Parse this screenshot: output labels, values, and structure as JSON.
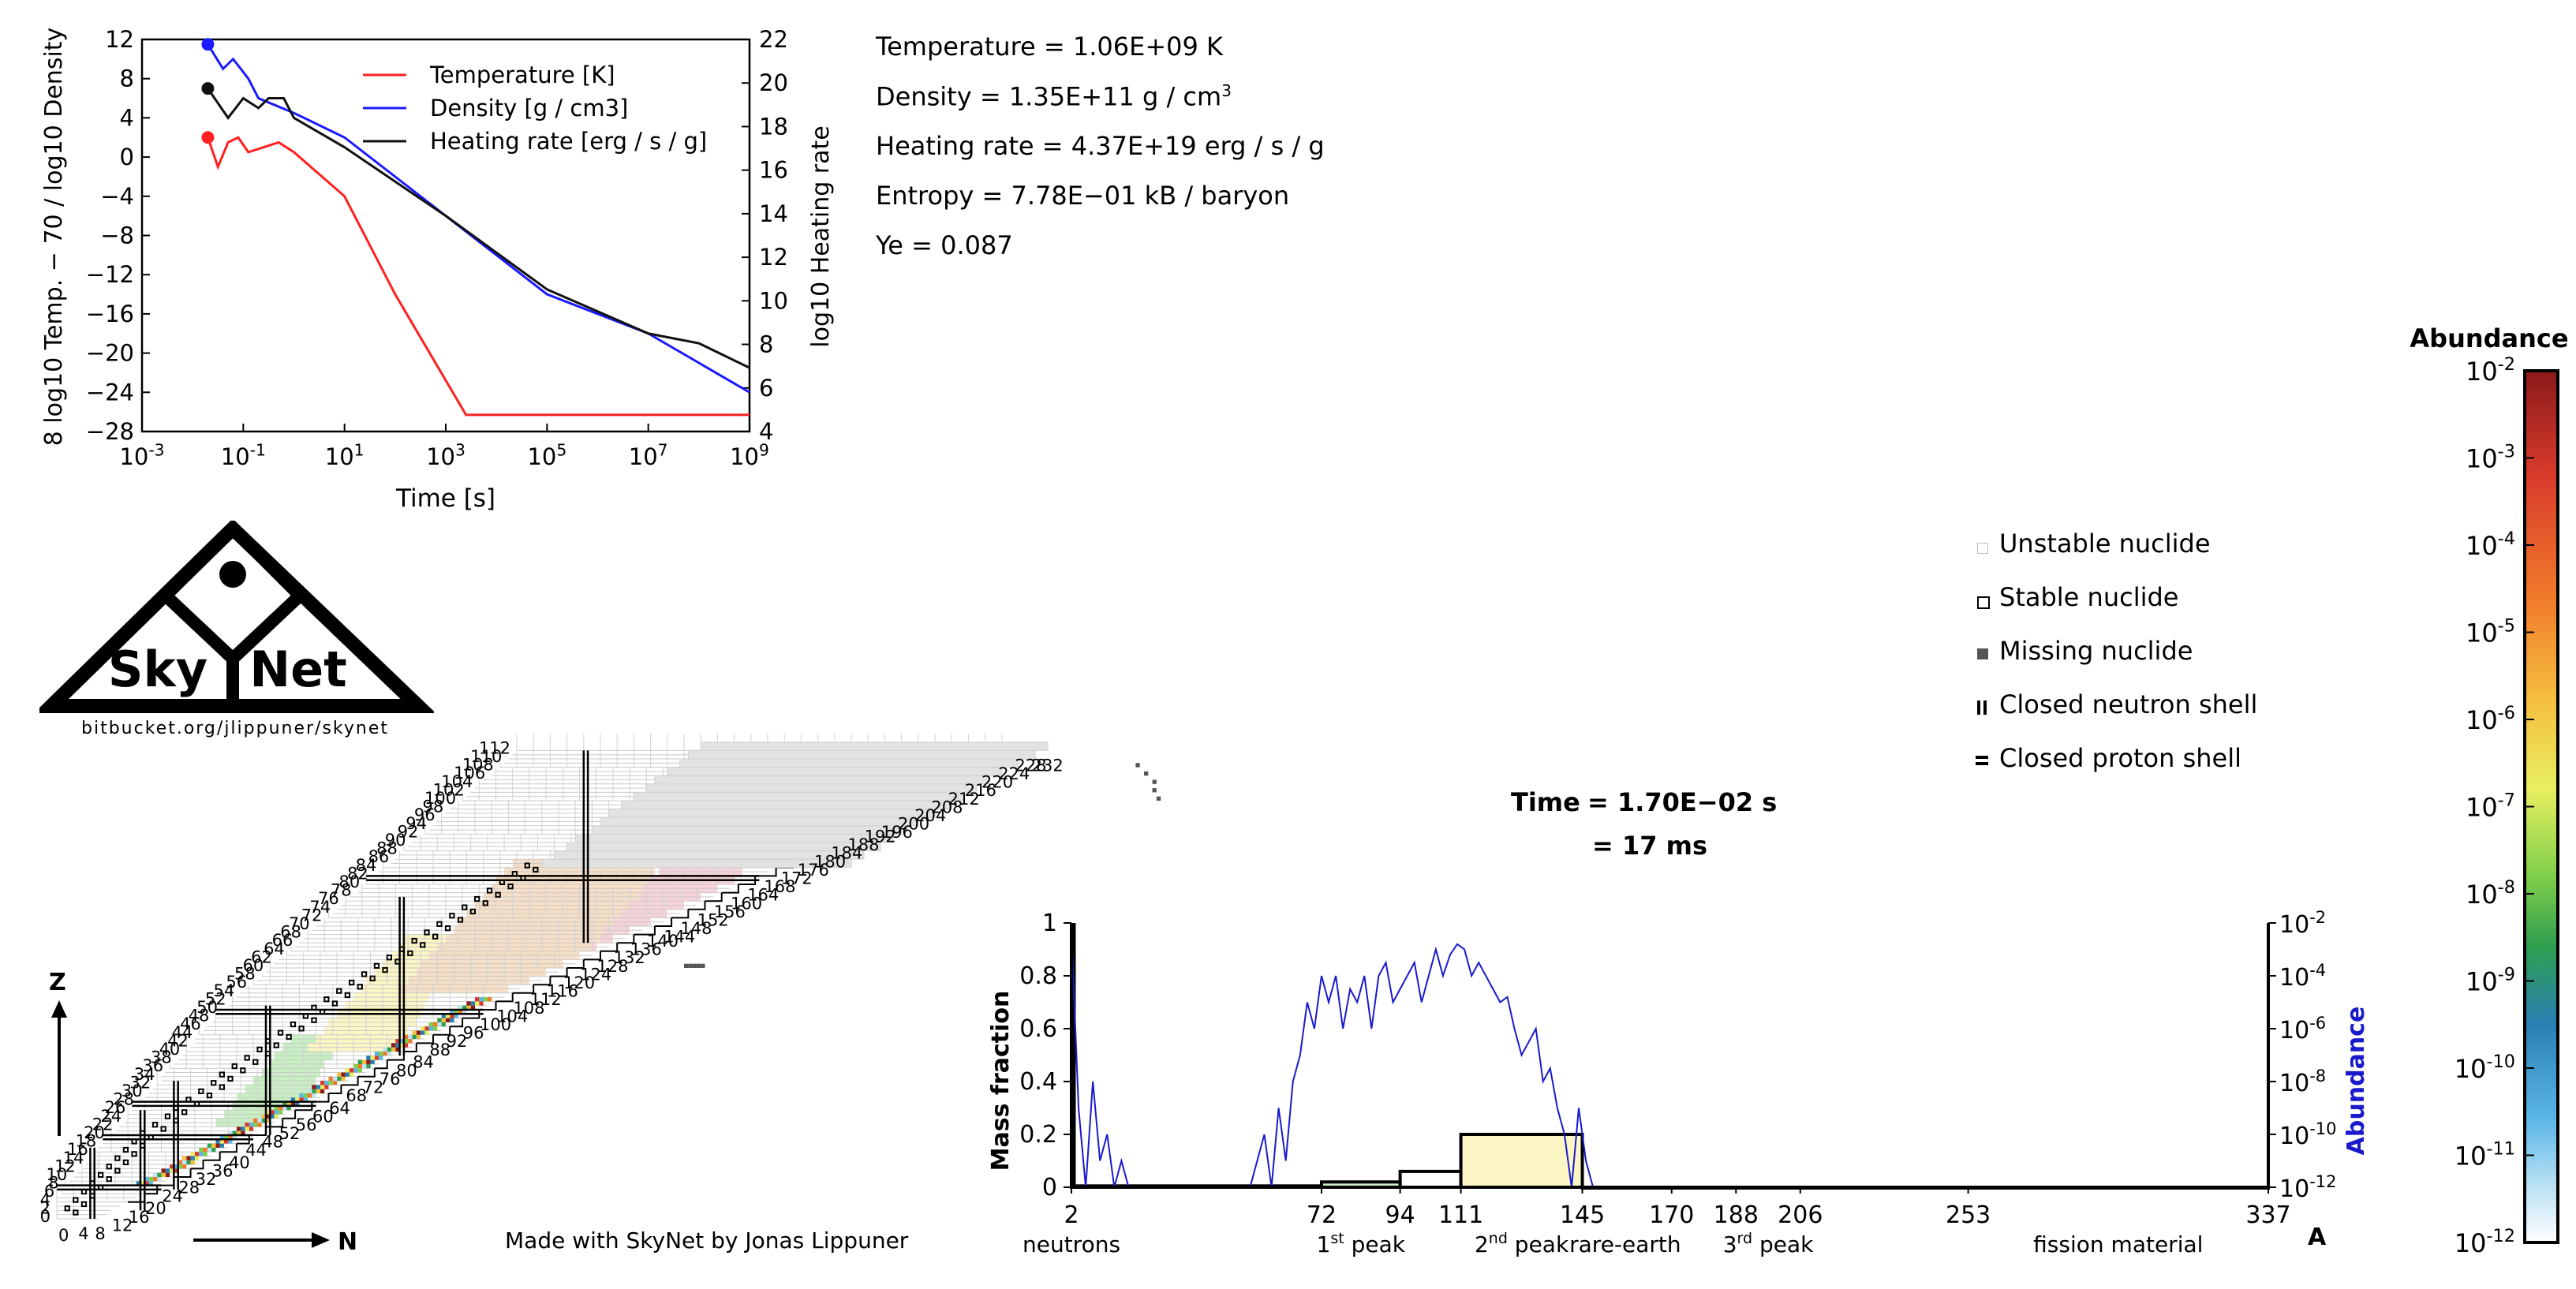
{
  "colors": {
    "temperature": "#ff2020",
    "density": "#1a1aff",
    "heating": "#111111",
    "abundance_axis": "#1a1acc",
    "region_green": "#c8efc2",
    "region_yellow": "#fbf6c4",
    "region_orange": "#f6dfc6",
    "region_pink": "#f6d3d8",
    "region_grey": "#e2e2e2",
    "peak_fill": "#fbf6c4"
  },
  "thermo_chart": {
    "type": "line",
    "xlabel": "Time [s]",
    "ylabel_left": "8 log10 Temp. − 70  /  log10 Density",
    "ylabel_right": "log10 Heating rate",
    "x_ticks": [
      "10-3",
      "10-1",
      "101",
      "103",
      "105",
      "107",
      "109"
    ],
    "y_left_ticks": [
      "12",
      "8",
      "4",
      "0",
      "−4",
      "−8",
      "−12",
      "−16",
      "−20",
      "−24",
      "−28"
    ],
    "y_right_ticks": [
      "22",
      "20",
      "18",
      "16",
      "14",
      "12",
      "10",
      "8",
      "6",
      "4"
    ],
    "legend": [
      "Temperature [K]",
      "Density [g / cm3]",
      "Heating rate [erg / s / g]"
    ],
    "xlim": [
      -3,
      9
    ],
    "ylim_left": [
      -28,
      12
    ],
    "ylim_right": [
      4,
      22
    ],
    "series": [
      {
        "name": "Temperature",
        "color_key": "temperature",
        "x": [
          -1.7,
          -1.5,
          -1.3,
          -1.1,
          -0.9,
          -0.6,
          -0.3,
          0,
          1,
          2,
          3.4,
          9
        ],
        "y": [
          2,
          -1,
          1.5,
          2,
          0.5,
          1,
          1.5,
          0.5,
          -4,
          -14,
          -26.3,
          -26.3
        ]
      },
      {
        "name": "Density",
        "color_key": "density",
        "x": [
          -1.7,
          -1.4,
          -1.2,
          -0.9,
          -0.7,
          0,
          1,
          3,
          5,
          7,
          9
        ],
        "y": [
          11.5,
          9,
          10,
          8,
          6,
          4.5,
          2,
          -6,
          -14,
          -18,
          -24
        ]
      },
      {
        "name": "Heating",
        "color_key": "heating",
        "x": [
          -1.7,
          -1.3,
          -1.0,
          -0.7,
          -0.5,
          -0.2,
          0,
          1,
          3,
          5,
          7,
          8,
          9
        ],
        "y": [
          7,
          4,
          6,
          5,
          6,
          6,
          4,
          1,
          -6,
          -13.5,
          -18,
          -19,
          -21.5
        ]
      }
    ],
    "markers": [
      {
        "series": "Temperature",
        "x": -1.7,
        "y": 2
      },
      {
        "series": "Density",
        "x": -1.7,
        "y": 11.5
      },
      {
        "series": "Heating",
        "x": -1.7,
        "y": 7
      }
    ]
  },
  "state": {
    "temperature": "Temperature = 1.06E+09 K",
    "density": "Density = 1.35E+11 g / cm",
    "density_sup": "3",
    "heating": "Heating rate = 4.37E+19 erg / s / g",
    "entropy": "Entropy = 7.78E−01 kB / baryon",
    "ye": "Ye = 0.087"
  },
  "time": {
    "label": "Time",
    "value": "= 1.70E−02 s",
    "value_ms": "= 17 ms"
  },
  "logo": {
    "sky": "Sky",
    "net": "Net",
    "url": "bitbucket.org/jlippuner/skynet"
  },
  "credit": "Made with SkyNet by Jonas Lippuner",
  "nuclide_chart": {
    "axis_z": "Z",
    "axis_n": "N",
    "z_labels": [
      "0",
      "2",
      "4",
      "6",
      "8",
      "10",
      "12",
      "14",
      "16",
      "18",
      "20",
      "22",
      "24",
      "26",
      "28",
      "30",
      "32",
      "34",
      "36",
      "38",
      "40",
      "42",
      "44",
      "46",
      "48",
      "50",
      "52",
      "54",
      "56",
      "58",
      "60",
      "62",
      "64",
      "66",
      "68",
      "70",
      "72",
      "74",
      "76",
      "78",
      "80",
      "82",
      "84",
      "86",
      "88",
      "90",
      "92",
      "94",
      "96",
      "98",
      "100",
      "102",
      "104",
      "106",
      "108",
      "110",
      "112"
    ],
    "n_labels": [
      "4",
      "8",
      "12",
      "16",
      "20",
      "24",
      "28",
      "32",
      "36",
      "40",
      "44",
      "48",
      "52",
      "56",
      "60",
      "64",
      "68",
      "72",
      "76",
      "80",
      "84",
      "88",
      "92",
      "96",
      "100",
      "104",
      "108",
      "112",
      "116",
      "120",
      "124",
      "128",
      "132",
      "136",
      "140",
      "144",
      "148",
      "152",
      "156",
      "160",
      "164",
      "168",
      "172",
      "176",
      "180",
      "184",
      "188",
      "192",
      "196",
      "200",
      "204",
      "208",
      "212",
      "216",
      "220",
      "224",
      "228",
      "232"
    ],
    "n_label_zero": "0",
    "magic_z": [
      8,
      20,
      28,
      50,
      82
    ],
    "magic_n": [
      8,
      20,
      28,
      50,
      82,
      126
    ]
  },
  "legend": {
    "items": [
      "Unstable nuclide",
      "Stable nuclide",
      "Missing nuclide",
      "Closed neutron shell",
      "Closed proton shell"
    ]
  },
  "colorbar": {
    "title": "Abundance",
    "ticks": [
      "10-2",
      "10-3",
      "10-4",
      "10-5",
      "10-6",
      "10-7",
      "10-8",
      "10-9",
      "10-10",
      "10-11",
      "10-12"
    ]
  },
  "chart_data": {
    "type": "bar",
    "title": "",
    "xlabel": "A",
    "ylabel": "Mass fraction",
    "ylabel_right": "Abundance",
    "ylim": [
      0,
      1
    ],
    "y_ticks": [
      "1",
      "0.8",
      "0.6",
      "0.4",
      "0.2",
      "0"
    ],
    "y_right_ticks": [
      "10-2",
      "10-4",
      "10-6",
      "10-8",
      "10-10",
      "10-12"
    ],
    "x_ticks": [
      "2",
      "72",
      "94",
      "111",
      "145",
      "170",
      "188",
      "206",
      "253",
      "337"
    ],
    "x_tick_values": [
      2,
      72,
      94,
      111,
      145,
      170,
      188,
      206,
      253,
      337
    ],
    "region_labels": [
      "neutrons",
      "1st peak",
      "2nd peak",
      "rare-earth",
      "3rd peak",
      "fission material"
    ],
    "bins": [
      {
        "from": 2,
        "to": 72,
        "value": 0.005
      },
      {
        "from": 72,
        "to": 94,
        "value": 0.02
      },
      {
        "from": 94,
        "to": 111,
        "value": 0.06
      },
      {
        "from": 111,
        "to": 145,
        "value": 0.2
      },
      {
        "from": 145,
        "to": 170,
        "value": 0.0
      },
      {
        "from": 170,
        "to": 188,
        "value": 0.0
      },
      {
        "from": 188,
        "to": 206,
        "value": 0.0
      },
      {
        "from": 206,
        "to": 253,
        "value": 0.0
      },
      {
        "from": 253,
        "to": 337,
        "value": 0.0
      }
    ],
    "neutron_spike": 1.0,
    "abundance_series": {
      "name": "Abundance",
      "x": [
        2,
        4,
        6,
        8,
        10,
        12,
        14,
        16,
        18,
        20,
        22,
        24,
        26,
        28,
        30,
        35,
        40,
        45,
        50,
        52,
        54,
        56,
        58,
        60,
        62,
        64,
        66,
        68,
        70,
        72,
        74,
        76,
        78,
        80,
        82,
        84,
        86,
        88,
        90,
        92,
        94,
        96,
        98,
        100,
        102,
        104,
        106,
        108,
        110,
        112,
        114,
        116,
        118,
        120,
        122,
        124,
        126,
        128,
        130,
        132,
        134,
        136,
        138,
        140,
        142,
        144,
        146,
        148,
        150,
        152,
        154
      ],
      "y": [
        -2.3,
        -9,
        -12,
        -8,
        -11,
        -10,
        -12,
        -11,
        -12,
        -12,
        -12,
        -12,
        -12,
        -12,
        -12,
        -12,
        -12,
        -12,
        -12,
        -12,
        -11,
        -10,
        -12,
        -9,
        -11,
        -8,
        -7,
        -5,
        -6,
        -4,
        -5,
        -4,
        -6,
        -4.5,
        -5,
        -4,
        -6,
        -4,
        -3.5,
        -5,
        -4.5,
        -4,
        -3.5,
        -5,
        -4,
        -3,
        -4,
        -3.2,
        -2.8,
        -3,
        -4,
        -3.5,
        -4,
        -4.5,
        -5,
        -4.8,
        -6,
        -7,
        -6.5,
        -6,
        -8,
        -7.5,
        -9,
        -10,
        -12,
        -9,
        -11,
        -12,
        -12,
        -12,
        -12
      ]
    }
  }
}
